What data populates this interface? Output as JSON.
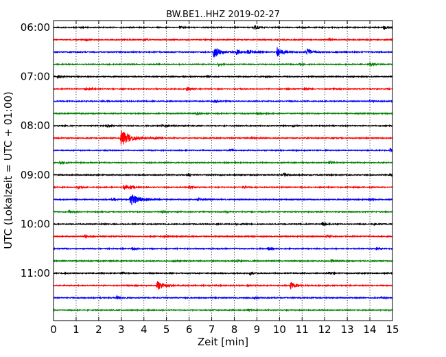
{
  "chart_data": {
    "type": "line",
    "title": "BW.BE1..HHZ 2019-02-27",
    "xlabel": "Zeit  [min]",
    "ylabel": "UTC (Lokalzeit = UTC + 01:00)",
    "xlim": [
      0,
      15
    ],
    "x_ticks": [
      "0",
      "1",
      "2",
      "3",
      "4",
      "5",
      "6",
      "7",
      "8",
      "9",
      "10",
      "11",
      "12",
      "13",
      "14",
      "15"
    ],
    "y_ticks": [
      "06:00",
      "07:00",
      "08:00",
      "09:00",
      "10:00",
      "11:00"
    ],
    "grid": true,
    "grid_axis": "x",
    "trace_minutes": 15,
    "start_time": "06:00",
    "line_colors": [
      "#000000",
      "#ff0000",
      "#0000ff",
      "#008000"
    ],
    "series": [
      {
        "start": "06:00",
        "color": "#000000",
        "events": [
          {
            "t": 5.6,
            "a": 0.35
          },
          {
            "t": 8.9,
            "a": 0.6
          },
          {
            "t": 14.6,
            "a": 0.45
          }
        ]
      },
      {
        "start": "06:15",
        "color": "#ff0000",
        "events": [
          {
            "t": 1.4,
            "a": 0.25
          },
          {
            "t": 4.0,
            "a": 0.25
          },
          {
            "t": 12.2,
            "a": 0.25
          }
        ]
      },
      {
        "start": "06:30",
        "color": "#0000ff",
        "events": [
          {
            "t": 7.1,
            "a": 1.5
          },
          {
            "t": 8.1,
            "a": 0.7
          },
          {
            "t": 8.6,
            "a": 0.7
          },
          {
            "t": 9.9,
            "a": 1.2
          },
          {
            "t": 11.2,
            "a": 1.0
          }
        ]
      },
      {
        "start": "06:45",
        "color": "#008000",
        "events": [
          {
            "t": 7.3,
            "a": 0.35
          },
          {
            "t": 10.9,
            "a": 0.3
          },
          {
            "t": 14.0,
            "a": 0.45
          }
        ]
      },
      {
        "start": "07:00",
        "color": "#000000",
        "events": [
          {
            "t": 0.2,
            "a": 0.4
          },
          {
            "t": 6.8,
            "a": 0.3
          },
          {
            "t": 9.4,
            "a": 0.25
          }
        ]
      },
      {
        "start": "07:15",
        "color": "#ff0000",
        "events": [
          {
            "t": 1.4,
            "a": 0.45
          },
          {
            "t": 5.9,
            "a": 0.55
          },
          {
            "t": 11.1,
            "a": 0.4
          },
          {
            "t": 12.4,
            "a": 0.25
          }
        ]
      },
      {
        "start": "07:30",
        "color": "#0000ff",
        "events": [
          {
            "t": 7.1,
            "a": 0.4
          },
          {
            "t": 14.0,
            "a": 0.25
          }
        ]
      },
      {
        "start": "07:45",
        "color": "#008000",
        "events": [
          {
            "t": 6.3,
            "a": 0.35
          },
          {
            "t": 9.0,
            "a": 0.25
          }
        ]
      },
      {
        "start": "08:00",
        "color": "#000000",
        "events": [
          {
            "t": 2.4,
            "a": 0.3
          },
          {
            "t": 4.8,
            "a": 0.25
          },
          {
            "t": 10.6,
            "a": 0.25
          }
        ]
      },
      {
        "start": "08:15",
        "color": "#ff0000",
        "events": [
          {
            "t": 3.0,
            "a": 2.2
          },
          {
            "t": 4.5,
            "a": 0.35
          },
          {
            "t": 8.8,
            "a": 0.25
          }
        ]
      },
      {
        "start": "08:30",
        "color": "#0000ff",
        "events": [
          {
            "t": 7.8,
            "a": 0.3
          },
          {
            "t": 14.9,
            "a": 0.45
          }
        ]
      },
      {
        "start": "08:45",
        "color": "#008000",
        "events": [
          {
            "t": 0.3,
            "a": 0.4
          },
          {
            "t": 12.2,
            "a": 0.35
          }
        ]
      },
      {
        "start": "09:00",
        "color": "#000000",
        "events": [
          {
            "t": 5.9,
            "a": 0.35
          },
          {
            "t": 10.2,
            "a": 0.35
          },
          {
            "t": 14.9,
            "a": 0.35
          }
        ]
      },
      {
        "start": "09:15",
        "color": "#ff0000",
        "events": [
          {
            "t": 1.1,
            "a": 0.4
          },
          {
            "t": 3.1,
            "a": 0.7
          },
          {
            "t": 3.4,
            "a": 0.45
          },
          {
            "t": 6.0,
            "a": 0.5
          },
          {
            "t": 8.4,
            "a": 0.25
          }
        ]
      },
      {
        "start": "09:30",
        "color": "#0000ff",
        "events": [
          {
            "t": 2.6,
            "a": 0.4
          },
          {
            "t": 3.4,
            "a": 2.0
          },
          {
            "t": 6.4,
            "a": 0.35
          },
          {
            "t": 14.0,
            "a": 0.35
          }
        ]
      },
      {
        "start": "09:45",
        "color": "#008000",
        "events": [
          {
            "t": 0.7,
            "a": 0.3
          },
          {
            "t": 4.8,
            "a": 0.3
          },
          {
            "t": 7.6,
            "a": 0.25
          }
        ]
      },
      {
        "start": "10:00",
        "color": "#000000",
        "events": [
          {
            "t": 8.1,
            "a": 0.3
          },
          {
            "t": 11.9,
            "a": 0.55
          },
          {
            "t": 14.2,
            "a": 0.3
          }
        ]
      },
      {
        "start": "10:15",
        "color": "#ff0000",
        "events": [
          {
            "t": 1.4,
            "a": 0.35
          },
          {
            "t": 4.9,
            "a": 0.25
          },
          {
            "t": 12.1,
            "a": 0.35
          }
        ]
      },
      {
        "start": "10:30",
        "color": "#0000ff",
        "events": [
          {
            "t": 3.5,
            "a": 0.35
          },
          {
            "t": 9.5,
            "a": 0.45
          },
          {
            "t": 14.3,
            "a": 0.35
          }
        ]
      },
      {
        "start": "10:45",
        "color": "#008000",
        "events": [
          {
            "t": 5.3,
            "a": 0.25
          },
          {
            "t": 8.1,
            "a": 0.25
          },
          {
            "t": 12.3,
            "a": 0.45
          }
        ]
      },
      {
        "start": "11:00",
        "color": "#000000",
        "events": [
          {
            "t": 3.0,
            "a": 0.25
          },
          {
            "t": 8.7,
            "a": 0.4
          },
          {
            "t": 12.2,
            "a": 0.3
          }
        ]
      },
      {
        "start": "11:15",
        "color": "#ff0000",
        "events": [
          {
            "t": 4.6,
            "a": 1.3
          },
          {
            "t": 8.6,
            "a": 0.25
          },
          {
            "t": 10.5,
            "a": 1.0
          }
        ]
      },
      {
        "start": "11:30",
        "color": "#0000ff",
        "events": [
          {
            "t": 2.8,
            "a": 0.45
          },
          {
            "t": 8.9,
            "a": 0.3
          },
          {
            "t": 14.5,
            "a": 0.25
          }
        ]
      },
      {
        "start": "11:45",
        "color": "#008000",
        "events": [
          {
            "t": 8.6,
            "a": 0.35
          }
        ]
      }
    ]
  }
}
